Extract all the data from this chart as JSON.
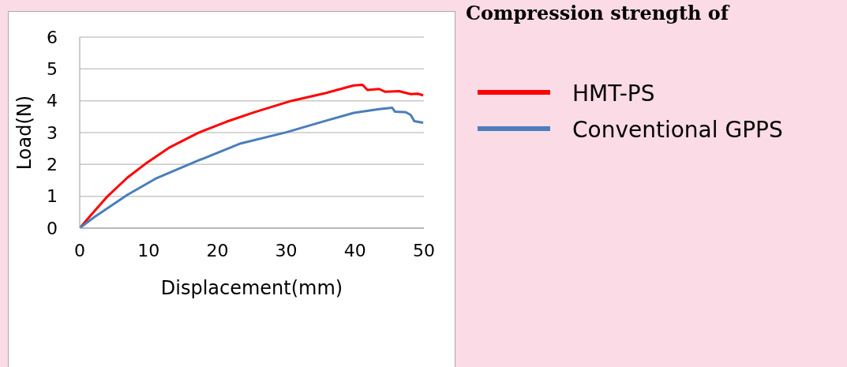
{
  "chart_data": {
    "type": "line",
    "title": "Compression strength of",
    "xlabel": "Displacement(mm)",
    "ylabel": "Load(N)",
    "xlim": [
      0,
      50
    ],
    "xticks": [
      0,
      10,
      20,
      30,
      40,
      50
    ],
    "ylim": [
      0,
      6
    ],
    "yticks": [
      0,
      1,
      2,
      3,
      4,
      5,
      6
    ],
    "grid": "y",
    "legend": "right",
    "marker": "none",
    "line_style": "solid",
    "series": [
      {
        "name": "HMT-PS",
        "color": "#ff0000",
        "x": [
          0,
          1.56,
          4.0,
          6.9,
          9.8,
          13.1,
          17.2,
          21.3,
          25.4,
          30.8,
          35.7,
          39.8,
          41.1,
          41.8,
          43.5,
          44.4,
          46.4,
          48.1,
          49.1,
          49.9
        ],
        "values": [
          0,
          0.39,
          0.99,
          1.58,
          2.06,
          2.54,
          2.99,
          3.34,
          3.64,
          4.0,
          4.24,
          4.48,
          4.5,
          4.34,
          4.37,
          4.28,
          4.3,
          4.21,
          4.22,
          4.17
        ]
      },
      {
        "name": "Conventional GPPS",
        "color": "#4a7ebb",
        "x": [
          0,
          2.0,
          6.9,
          11.0,
          17.2,
          23.4,
          30.0,
          35.7,
          39.8,
          43.5,
          45.4,
          45.8,
          47.4,
          48.1,
          48.6,
          49.9
        ],
        "values": [
          0,
          0.33,
          1.04,
          1.55,
          2.12,
          2.66,
          3.01,
          3.37,
          3.62,
          3.74,
          3.78,
          3.66,
          3.64,
          3.55,
          3.36,
          3.31
        ]
      }
    ]
  }
}
